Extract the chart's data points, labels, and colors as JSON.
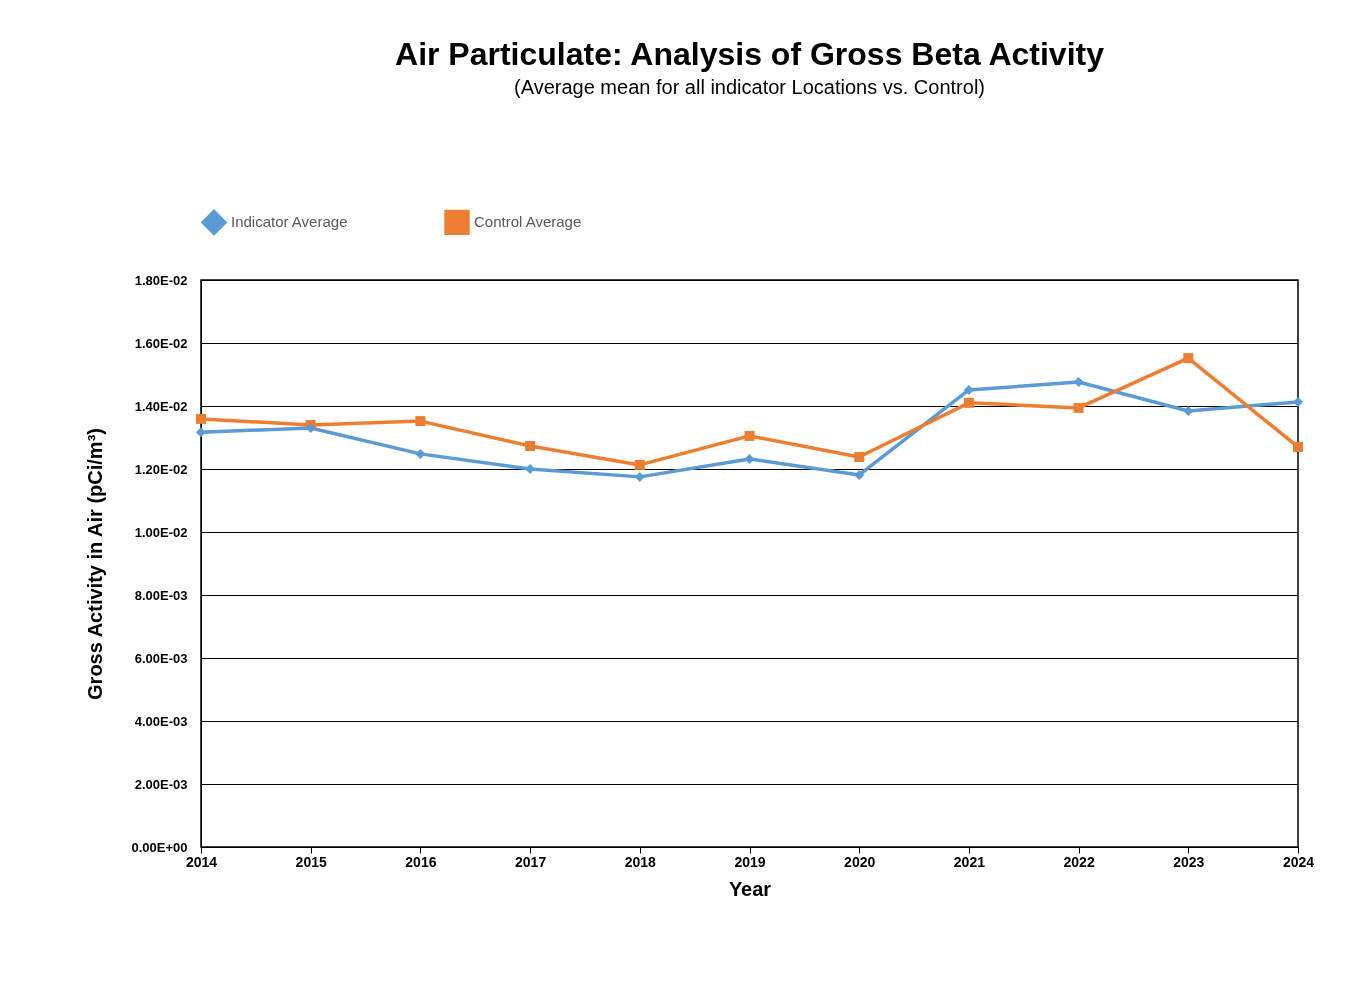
{
  "chart_data": {
    "type": "line",
    "title": "Air Particulate: Analysis of Gross Beta Activity",
    "subtitle": "(Average mean for all indicator Locations vs. Control)",
    "xlabel": "Year",
    "ylabel": "Gross Activity in Air (pCi/m³)",
    "x": [
      2014,
      2015,
      2016,
      2017,
      2018,
      2019,
      2020,
      2021,
      2022,
      2023,
      2024
    ],
    "series": [
      {
        "name": "Indicator Average",
        "color": "#5b9bd5",
        "marker": "diamond",
        "values": [
          0.01317,
          0.0133,
          0.01248,
          0.012,
          0.01175,
          0.01232,
          0.01181,
          0.01451,
          0.01476,
          0.01384,
          0.01413
        ]
      },
      {
        "name": "Control Average",
        "color": "#ed7d31",
        "marker": "square",
        "values": [
          0.01359,
          0.0134,
          0.01352,
          0.01273,
          0.01213,
          0.01305,
          0.01238,
          0.0141,
          0.01394,
          0.01552,
          0.0127
        ]
      }
    ],
    "xlim": [
      2014,
      2024
    ],
    "xticks": [
      2014,
      2015,
      2016,
      2017,
      2018,
      2019,
      2020,
      2021,
      2022,
      2023,
      2024
    ],
    "ylim": [
      0,
      0.018
    ],
    "yticks": [
      {
        "value": 0,
        "label": "0.00E+00"
      },
      {
        "value": 0.002,
        "label": "2.00E-03"
      },
      {
        "value": 0.004,
        "label": "4.00E-03"
      },
      {
        "value": 0.006,
        "label": "6.00E-03"
      },
      {
        "value": 0.008,
        "label": "8.00E-03"
      },
      {
        "value": 0.01,
        "label": "1.00E-02"
      },
      {
        "value": 0.012,
        "label": "1.20E-02"
      },
      {
        "value": 0.014,
        "label": "1.40E-02"
      },
      {
        "value": 0.016,
        "label": "1.60E-02"
      },
      {
        "value": 0.018,
        "label": "1.80E-02"
      }
    ],
    "grid": "y",
    "legend": "top",
    "line_style": "solid"
  }
}
